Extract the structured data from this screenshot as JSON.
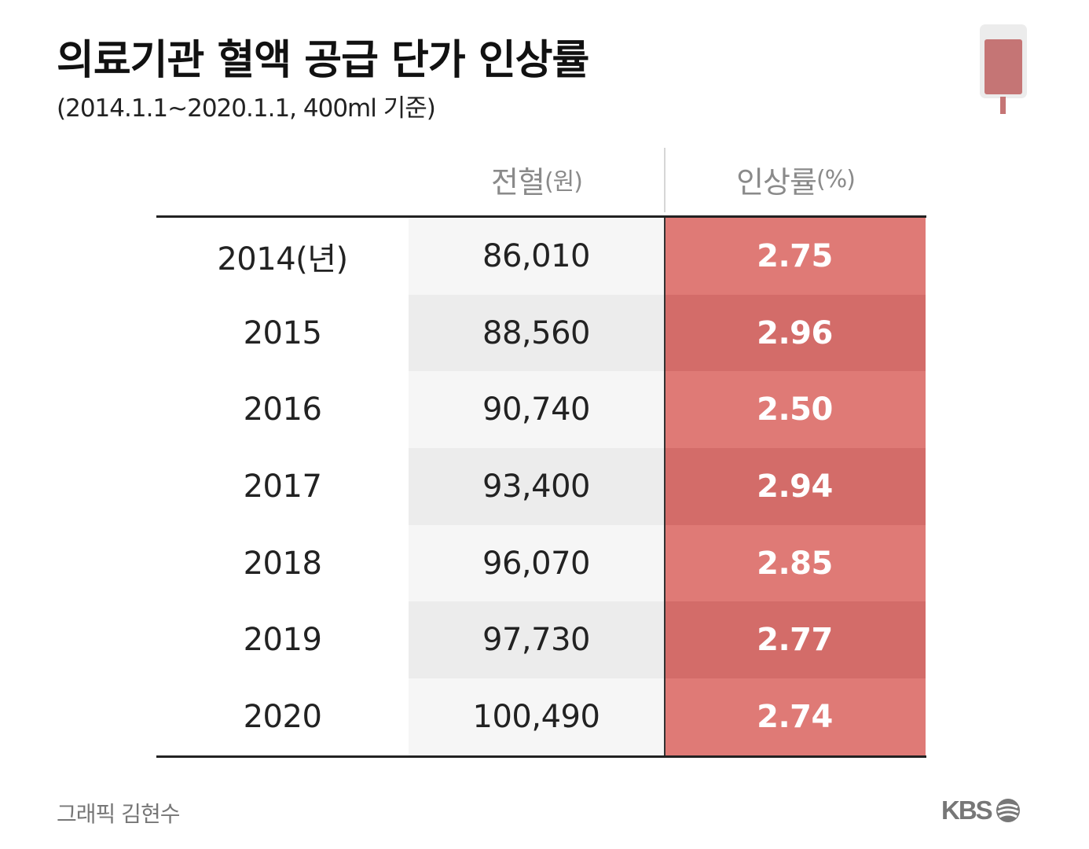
{
  "title": "의료기관 혈액 공급 단가 인상률",
  "subtitle": "(2014.1.1~2020.1.1, 400ml 기준)",
  "table": {
    "headers": {
      "price": "전혈",
      "price_unit": "(원)",
      "rate": "인상률",
      "rate_unit": "(%)"
    },
    "rows": [
      {
        "year": "2014(년)",
        "price": "86,010",
        "rate": "2.75"
      },
      {
        "year": "2015",
        "price": "88,560",
        "rate": "2.96"
      },
      {
        "year": "2016",
        "price": "90,740",
        "rate": "2.50"
      },
      {
        "year": "2017",
        "price": "93,400",
        "rate": "2.94"
      },
      {
        "year": "2018",
        "price": "96,070",
        "rate": "2.85"
      },
      {
        "year": "2019",
        "price": "97,730",
        "rate": "2.77"
      },
      {
        "year": "2020",
        "price": "100,490",
        "rate": "2.74"
      }
    ]
  },
  "footer": {
    "credit": "그래픽 김현수",
    "logo_text": "KBS"
  },
  "icons": {
    "bag": "blood-bag-icon",
    "logo_mark": "kbs-logo-mark-icon"
  },
  "colors": {
    "rate_light": "#df7a76",
    "rate_dark": "#d36c69",
    "bag_fill": "#c57575"
  }
}
